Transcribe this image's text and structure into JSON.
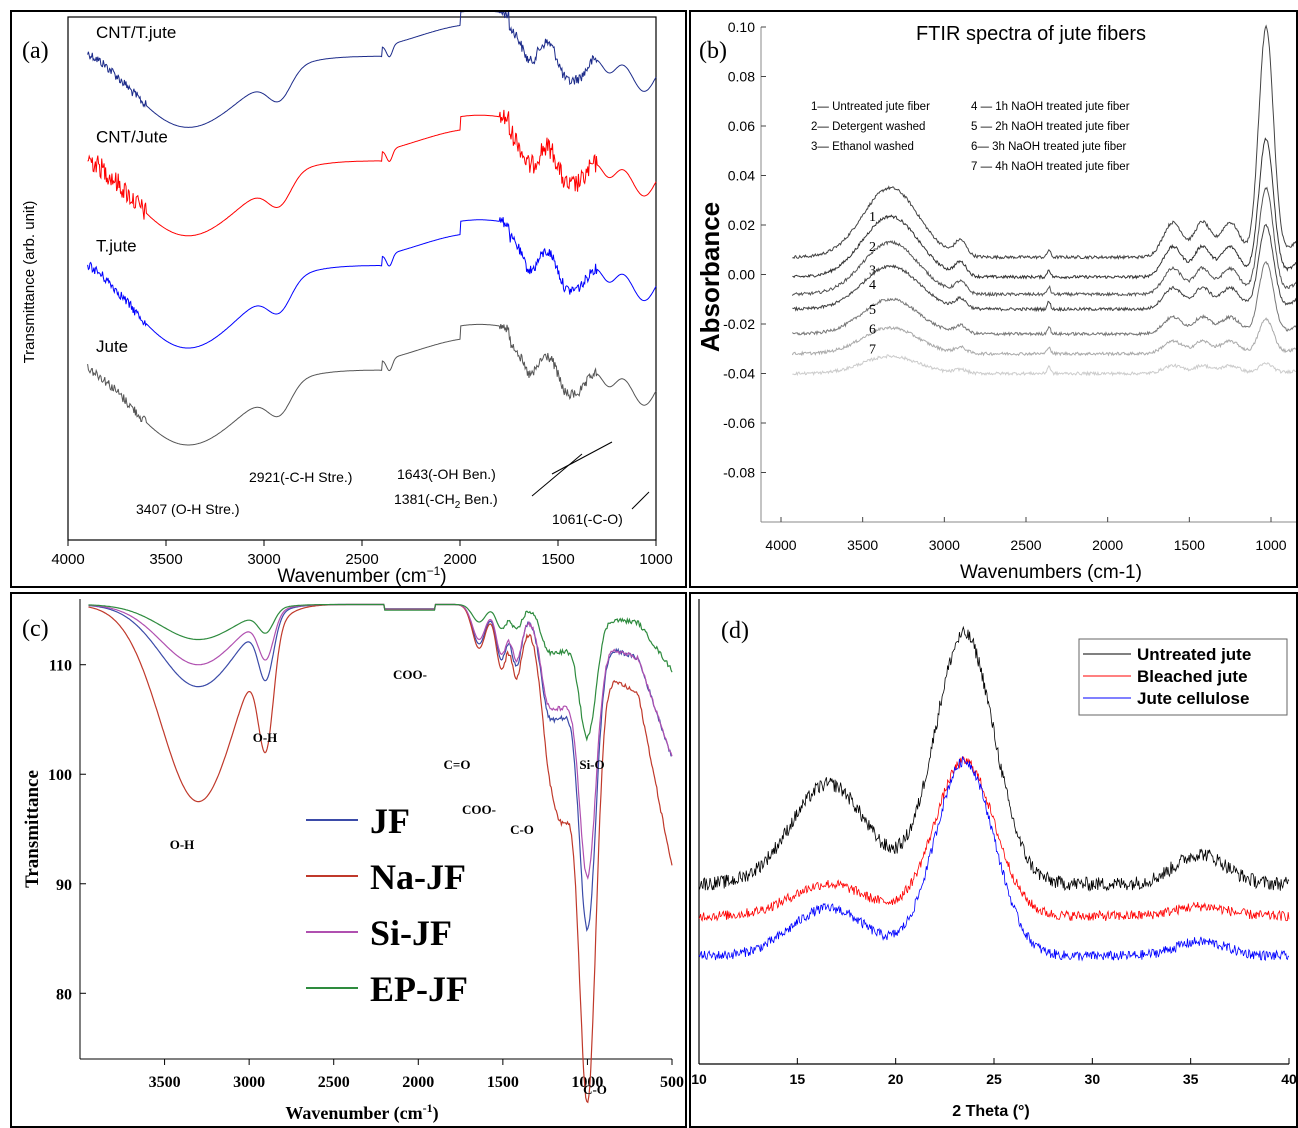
{
  "colors": {
    "black": "#000000",
    "red": "#ff0000",
    "blue": "#0000ff",
    "navy": "#1c2b8a",
    "grey": "#555555",
    "lightgrey": "#c8c8c8",
    "jf": "#3b4ba8",
    "najf": "#c0392b",
    "sijf": "#b050b0",
    "epjf": "#2e8b3e"
  },
  "chart_data": [
    {
      "panel": "(a)",
      "type": "line",
      "title": "",
      "xlabel": "Wavenumber (cm⁻¹)",
      "ylabel": "Transmittance (arb. unit)",
      "xlim": [
        4000,
        1000
      ],
      "xticks": [
        "4000",
        "3500",
        "3000",
        "2500",
        "2000",
        "1500",
        "1000"
      ],
      "series": [
        {
          "name": "CNT/T.jute",
          "color": "navy",
          "offset": 0.18,
          "depth": 0.95
        },
        {
          "name": "CNT/Jute",
          "color": "red",
          "offset": 0.38,
          "depth": 1.0
        },
        {
          "name": "T.jute",
          "color": "blue",
          "offset": 0.58,
          "depth": 1.1
        },
        {
          "name": "Jute",
          "color": "grey",
          "offset": 0.78,
          "depth": 1.0
        }
      ],
      "annotations": [
        {
          "text": "3407 (O-H Stre.)",
          "x": 3407
        },
        {
          "text": "2921(-C-H Stre.)",
          "x": 2921
        },
        {
          "text": "1643(-OH Ben.)",
          "x": 1643
        },
        {
          "text": "1381(-CH",
          "sub": "2",
          "after": " Ben.)",
          "x": 1381
        },
        {
          "text": "1061(-C-O)",
          "x": 1061
        }
      ]
    },
    {
      "panel": "(b)",
      "type": "line",
      "title": "FTIR spectra of jute fibers",
      "xlabel": "Wavenumbers (cm-1)",
      "ylabel": "Absorbance",
      "xlim": [
        4000,
        700
      ],
      "ylim": [
        -0.1,
        0.1
      ],
      "xticks": [
        "4000",
        "3500",
        "3000",
        "2500",
        "2000",
        "1500",
        "1000"
      ],
      "yticks": [
        "0.10",
        "0.08",
        "0.06",
        "0.04",
        "0.02",
        "0.00",
        "-0.02",
        "-0.04",
        "-0.06",
        "-0.08"
      ],
      "yvalues": [
        0.1,
        0.08,
        0.06,
        0.04,
        0.02,
        0.0,
        -0.02,
        -0.04,
        -0.06,
        -0.08
      ],
      "legend": [
        "1— Untreated jute fiber",
        "2— Detergent washed",
        "3— Ethanol washed",
        "4 — 1h NaOH treated jute fiber",
        "5 — 2h NaOH treated jute fiber",
        "6— 3h NaOH treated jute fiber",
        "7 — 4h NaOH treated jute fiber"
      ],
      "series": [
        {
          "name": "1",
          "baseline": 0.007,
          "peak": 0.1
        },
        {
          "name": "2",
          "baseline": -0.001,
          "peak": 0.055
        },
        {
          "name": "3",
          "baseline": -0.008,
          "peak": 0.035
        },
        {
          "name": "4",
          "baseline": -0.014,
          "peak": 0.02
        },
        {
          "name": "5",
          "baseline": -0.024,
          "peak": 0.005
        },
        {
          "name": "6",
          "baseline": -0.032,
          "peak": -0.018
        },
        {
          "name": "7",
          "baseline": -0.04,
          "peak": -0.036
        }
      ]
    },
    {
      "panel": "(c)",
      "type": "line",
      "title": "",
      "xlabel": "Wavenumber (cm⁻¹)",
      "ylabel": "Transmittance",
      "xlim": [
        4000,
        500
      ],
      "ylim": [
        74,
        116
      ],
      "xticks": [
        "3500",
        "3000",
        "2500",
        "2000",
        "1500",
        "1000",
        "500"
      ],
      "yticks": [
        "110",
        "100",
        "90",
        "80"
      ],
      "legend": [
        "JF",
        "Na-JF",
        "Si-JF",
        "EP-JF"
      ],
      "series": [
        {
          "name": "JF",
          "color": "jf",
          "min": 88
        },
        {
          "name": "Na-JF",
          "color": "najf",
          "min": 74
        },
        {
          "name": "Si-JF",
          "color": "sijf",
          "min": 93
        },
        {
          "name": "EP-JF",
          "color": "epjf",
          "min": 104
        }
      ],
      "annotations": [
        {
          "text": "O-H",
          "x": 3300
        },
        {
          "text": "O-H",
          "x": 2900
        },
        {
          "text": "COO-",
          "x": 1700
        },
        {
          "text": "C=O",
          "x": 1560
        },
        {
          "text": "COO-",
          "x": 1380
        },
        {
          "text": "C-O",
          "x": 1250
        },
        {
          "text": "Si-O",
          "x": 780
        },
        {
          "text": "C-O",
          "x": 900
        }
      ]
    },
    {
      "panel": "(d)",
      "type": "line",
      "title": "",
      "xlabel": "2 Theta (°)",
      "ylabel": "",
      "xlim": [
        10,
        40
      ],
      "xticks": [
        "10",
        "15",
        "20",
        "25",
        "30",
        "35",
        "40"
      ],
      "legend": [
        "Untreated jute",
        "Bleached jute",
        "Jute cellulose"
      ],
      "series": [
        {
          "name": "Untreated jute",
          "color": "black"
        },
        {
          "name": "Bleached jute",
          "color": "red"
        },
        {
          "name": "Jute cellulose",
          "color": "blue"
        }
      ]
    }
  ],
  "labels": {
    "a": {
      "panel": "(a)",
      "xlabel": "Wavenumber (cm",
      "xlabel_sup": "−1",
      "xlabel_end": ")"
    },
    "b": {
      "panel": "(b)",
      "xlabel": "Wavenumbers (cm-1)"
    },
    "c": {
      "panel": "(c)",
      "xlabel": "Wavenumber (cm",
      "xlabel_sup": "-1",
      "xlabel_end": ")"
    },
    "d": {
      "panel": "(d)"
    }
  }
}
